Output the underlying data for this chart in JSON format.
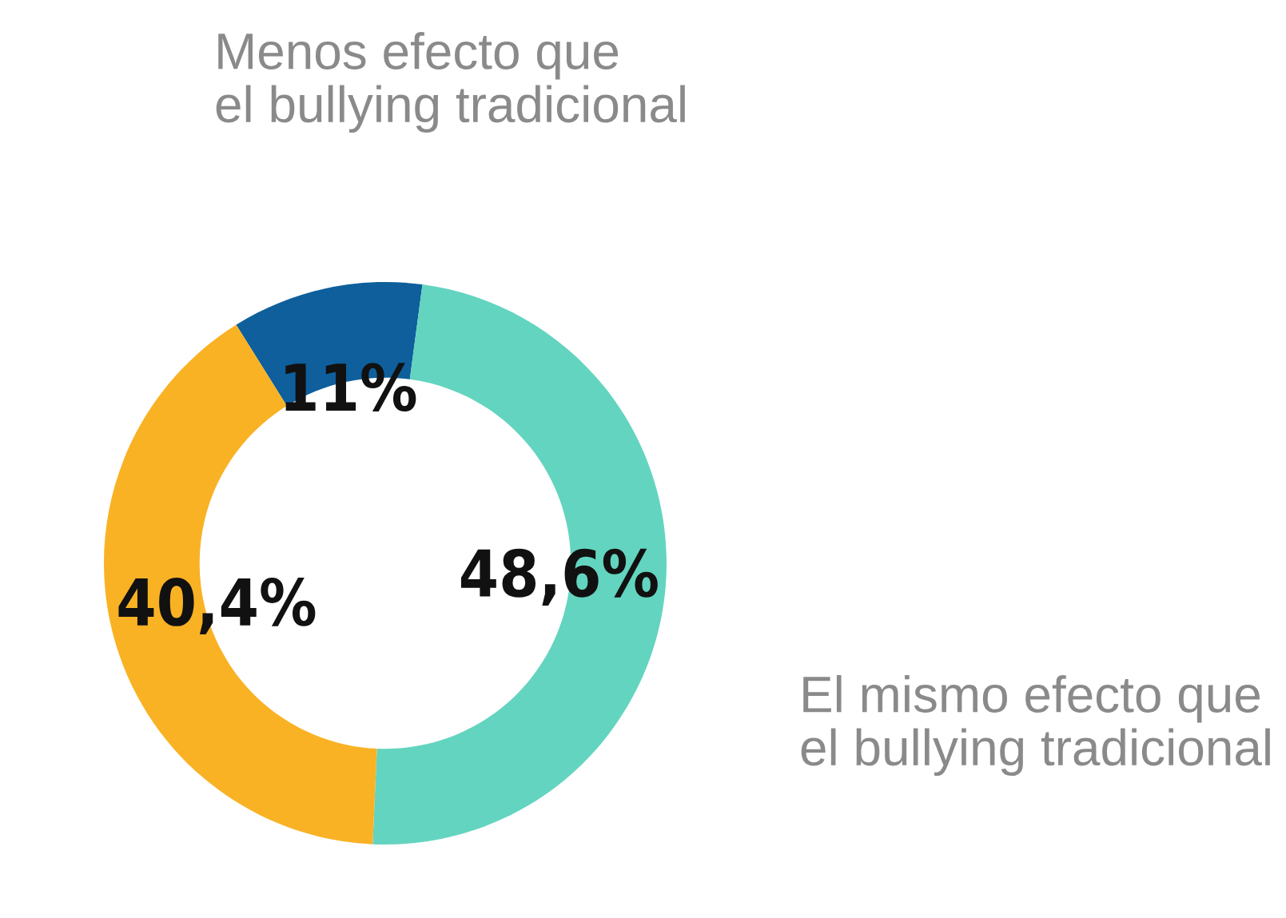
{
  "chart_data": {
    "type": "donut",
    "categories": [
      "Menos efecto que el bullying tradicional",
      "El mismo efecto que el bullying tradicional",
      null
    ],
    "values": [
      11,
      48.6,
      40.4
    ],
    "colors": [
      "#0e5f9c",
      "#63d4bf",
      "#f9b224"
    ],
    "value_labels": [
      "11%",
      "48,6%",
      "40,4%"
    ],
    "legend": false
  }
}
